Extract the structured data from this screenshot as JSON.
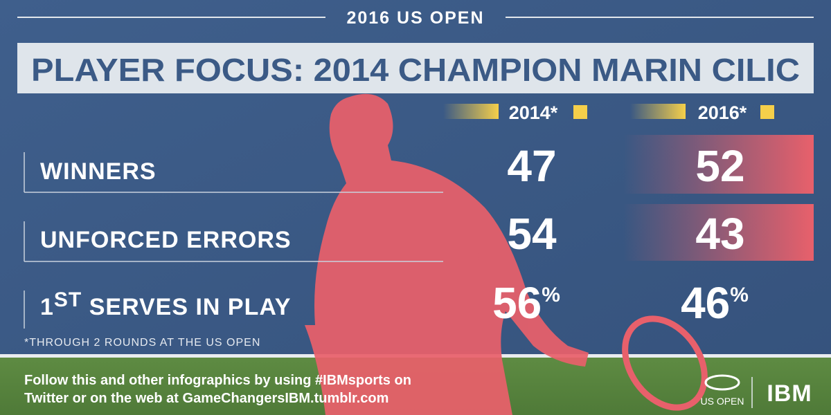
{
  "header": {
    "event": "2016 US OPEN",
    "title": "PLAYER FOCUS: 2014 CHAMPION MARIN CILIC"
  },
  "table": {
    "columns": [
      "2014*",
      "2016*"
    ],
    "rows": [
      {
        "label": "WINNERS",
        "values": [
          47,
          52
        ]
      },
      {
        "label": "UNFORCED ERRORS",
        "values": [
          54,
          43
        ]
      },
      {
        "label": [
          "1",
          "ST",
          " SERVES IN PLAY"
        ],
        "values": [
          56,
          46
        ],
        "unit": "%"
      }
    ]
  },
  "footnote": "*THROUGH 2 ROUNDS AT THE US OPEN",
  "footer": {
    "lines": [
      "Follow this and other infographics by using #IBMsports on",
      "Twitter or on the web at GameChangersIBM.tumblr.com"
    ],
    "logos": [
      "US OPEN",
      "IBM"
    ]
  }
}
